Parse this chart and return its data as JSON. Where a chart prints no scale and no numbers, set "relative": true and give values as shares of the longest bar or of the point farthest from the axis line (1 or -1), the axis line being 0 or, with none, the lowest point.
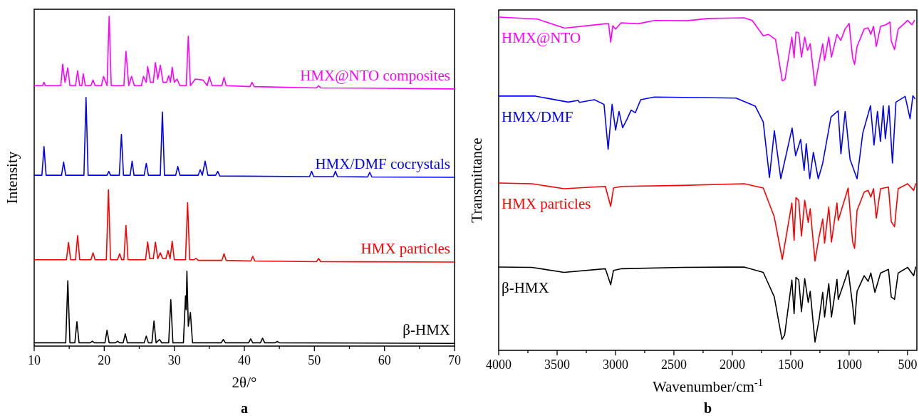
{
  "chart_data": [
    {
      "type": "line",
      "relative": true,
      "xlabel": "2θ/°",
      "ylabel": "Intensity",
      "annotations": [
        "a"
      ],
      "xlim": [
        10,
        70
      ],
      "xticks": [
        10,
        {
          "value": 15,
          "label": null
        },
        20,
        {
          "value": 25,
          "label": null
        },
        30,
        {
          "value": 35,
          "label": null
        },
        40,
        {
          "value": 45,
          "label": null
        },
        50,
        {
          "value": 55,
          "label": null
        },
        60,
        {
          "value": 65,
          "label": null
        },
        70
      ],
      "series": [
        {
          "name": "HMX@NTO composites",
          "color": "#ff00ff",
          "x": [
            10,
            11.2,
            11.4,
            11.6,
            13.8,
            14.07,
            14.4,
            14.8,
            15.1,
            15.9,
            16.2,
            16.5,
            16.8,
            17.0,
            17.3,
            18.1,
            18.4,
            18.7,
            19.6,
            19.9,
            20.4,
            20.7,
            21.0,
            22.8,
            23.1,
            23.5,
            23.9,
            24.3,
            25.3,
            25.6,
            26.0,
            26.2,
            26.6,
            27.0,
            27.3,
            27.65,
            28.0,
            28.4,
            28.9,
            29.2,
            29.45,
            29.7,
            30.0,
            30.4,
            30.8,
            31.7,
            32.0,
            32.3,
            33.0,
            34.1,
            34.7,
            35.0,
            35.4,
            36.8,
            37.1,
            37.4,
            40.8,
            41.1,
            41.4,
            50.3,
            50.6,
            50.9,
            60,
            70
          ],
          "values": [
            0.79,
            0.79,
            0.8,
            0.79,
            0.79,
            0.855,
            0.8,
            0.844,
            0.79,
            0.79,
            0.835,
            0.79,
            0.79,
            0.826,
            0.79,
            0.79,
            0.807,
            0.79,
            0.79,
            0.818,
            0.79,
            1.0,
            0.79,
            0.79,
            0.894,
            0.79,
            0.818,
            0.79,
            0.79,
            0.818,
            0.8,
            0.848,
            0.8,
            0.8,
            0.86,
            0.81,
            0.852,
            0.8,
            0.8,
            0.82,
            0.8,
            0.846,
            0.8,
            0.81,
            0.79,
            0.79,
            0.94,
            0.79,
            0.81,
            0.807,
            0.79,
            0.817,
            0.79,
            0.79,
            0.815,
            0.79,
            0.787,
            0.8,
            0.787,
            0.783,
            0.79,
            0.783,
            0.782,
            0.78
          ]
        },
        {
          "name": "HMX/DMF cocrystals",
          "color": "#0000ff",
          "x": [
            10,
            11.1,
            11.4,
            11.7,
            13.9,
            14.2,
            14.5,
            17.1,
            17.4,
            17.7,
            20.4,
            20.65,
            20.9,
            22.15,
            22.45,
            22.75,
            23.7,
            23.98,
            24.25,
            25.7,
            26.0,
            26.3,
            28.0,
            28.3,
            28.6,
            30.2,
            30.5,
            30.8,
            33.4,
            33.7,
            34.0,
            34.4,
            34.8,
            35.9,
            36.2,
            36.5,
            49.3,
            49.6,
            49.9,
            52.7,
            53.0,
            53.3,
            57.6,
            57.9,
            58.2,
            70
          ],
          "values": [
            0.518,
            0.518,
            0.605,
            0.518,
            0.518,
            0.558,
            0.518,
            0.518,
            0.754,
            0.518,
            0.518,
            0.53,
            0.518,
            0.518,
            0.642,
            0.518,
            0.518,
            0.561,
            0.518,
            0.518,
            0.554,
            0.518,
            0.518,
            0.71,
            0.518,
            0.518,
            0.545,
            0.518,
            0.518,
            0.535,
            0.518,
            0.561,
            0.518,
            0.518,
            0.53,
            0.516,
            0.514,
            0.53,
            0.514,
            0.514,
            0.53,
            0.514,
            0.513,
            0.527,
            0.513,
            0.512
          ]
        },
        {
          "name": "HMX particles",
          "color": "#ff0000",
          "x": [
            10,
            14.6,
            14.9,
            15.2,
            15.9,
            16.2,
            16.5,
            18.1,
            18.4,
            18.7,
            20.3,
            20.6,
            20.9,
            21.9,
            22.2,
            22.5,
            22.8,
            23.1,
            23.4,
            25.9,
            26.2,
            26.5,
            27.0,
            27.3,
            27.65,
            28.0,
            28.35,
            28.8,
            29.1,
            29.4,
            29.7,
            30.0,
            31.6,
            31.9,
            32.2,
            32.8,
            33.1,
            33.4,
            36.8,
            37.1,
            37.4,
            40.9,
            41.2,
            41.5,
            50.3,
            50.6,
            50.9,
            70
          ],
          "values": [
            0.262,
            0.262,
            0.314,
            0.262,
            0.262,
            0.335,
            0.262,
            0.262,
            0.283,
            0.262,
            0.262,
            0.474,
            0.262,
            0.262,
            0.28,
            0.262,
            0.262,
            0.366,
            0.262,
            0.262,
            0.316,
            0.265,
            0.265,
            0.315,
            0.265,
            0.283,
            0.265,
            0.265,
            0.29,
            0.265,
            0.318,
            0.262,
            0.262,
            0.435,
            0.262,
            0.262,
            0.266,
            0.26,
            0.26,
            0.28,
            0.26,
            0.258,
            0.272,
            0.258,
            0.256,
            0.266,
            0.256,
            0.255
          ]
        },
        {
          "name": "β-HMX",
          "color": "#000000",
          "x": [
            10,
            14.5,
            14.8,
            15.1,
            15.8,
            16.1,
            16.4,
            18.0,
            18.3,
            18.6,
            20.1,
            20.4,
            20.7,
            21.6,
            21.9,
            22.2,
            22.7,
            23.0,
            23.3,
            25.7,
            26.0,
            26.3,
            26.8,
            27.1,
            27.4,
            27.9,
            28.2,
            29.2,
            29.5,
            29.8,
            31.3,
            31.6,
            31.7,
            31.8,
            32.0,
            32.3,
            32.6,
            36.7,
            37.0,
            37.3,
            40.6,
            40.9,
            41.2,
            42.3,
            42.6,
            42.9,
            44.4,
            44.7,
            45.0,
            70
          ],
          "values": [
            0.01,
            0.01,
            0.198,
            0.01,
            0.01,
            0.074,
            0.01,
            0.01,
            0.015,
            0.01,
            0.01,
            0.048,
            0.01,
            0.01,
            0.015,
            0.01,
            0.01,
            0.037,
            0.01,
            0.01,
            0.03,
            0.01,
            0.01,
            0.076,
            0.01,
            0.02,
            0.01,
            0.01,
            0.141,
            0.01,
            0.01,
            0.152,
            0.11,
            0.227,
            0.06,
            0.102,
            0.01,
            0.01,
            0.02,
            0.01,
            0.01,
            0.022,
            0.01,
            0.01,
            0.024,
            0.01,
            0.01,
            0.014,
            0.01,
            0.008
          ]
        }
      ]
    },
    {
      "type": "line",
      "relative": true,
      "xlabel": "Wavenumber/cm$^{-1}$",
      "ylabel": "Transmittance",
      "annotations": [
        "b"
      ],
      "xlim": [
        4000,
        420
      ],
      "xticks": [
        4000,
        {
          "value": 3750,
          "label": null
        },
        3500,
        {
          "value": 3250,
          "label": null
        },
        3000,
        {
          "value": 2750,
          "label": null
        },
        2500,
        {
          "value": 2250,
          "label": null
        },
        2000,
        {
          "value": 1750,
          "label": null
        },
        1500,
        {
          "value": 1250,
          "label": null
        },
        1000,
        {
          "value": 750,
          "label": null
        },
        500
      ],
      "series": [
        {
          "name": "HMX@NTO",
          "color": "#ff00ff",
          "x": [
            4000,
            3669,
            3436,
            3087,
            3059,
            3041,
            3023,
            2999,
            2952,
            2807,
            2667,
            2387,
            2201,
            1898,
            1829,
            1735,
            1690,
            1630,
            1572,
            1549,
            1490,
            1471,
            1455,
            1431,
            1408,
            1380,
            1356,
            1333,
            1292,
            1256,
            1226,
            1210,
            1174,
            1151,
            1104,
            1071,
            1035,
            1000,
            970,
            953,
            932,
            871,
            837,
            814,
            791,
            767,
            731,
            685,
            650,
            639,
            611,
            580,
            499,
            463,
            440
          ],
          "values": [
            1,
            0.994,
            0.967,
            0.98,
            0.98,
            0.925,
            0.974,
            0.964,
            0.983,
            0.98,
            0.99,
            0.989,
            0.996,
            0.998,
            0.99,
            0.944,
            0.948,
            0.933,
            0.809,
            0.813,
            0.94,
            0.878,
            0.955,
            0.953,
            0.88,
            0.94,
            0.9,
            0.92,
            0.794,
            0.866,
            0.92,
            0.87,
            0.94,
            0.88,
            0.948,
            0.93,
            0.964,
            0.981,
            0.878,
            0.858,
            0.912,
            0.964,
            0.968,
            0.948,
            0.972,
            0.912,
            0.972,
            0.977,
            0.985,
            0.928,
            0.903,
            0.964,
            0.99,
            0.977,
            0.99
          ]
        },
        {
          "name": "HMX/DMF",
          "color": "#0000ff",
          "x": [
            4000,
            3687,
            3405,
            3320,
            3308,
            3181,
            3098,
            3063,
            3029,
            2999,
            2970,
            2939,
            2902,
            2866,
            2830,
            2784,
            2667,
            1968,
            1804,
            1735,
            1682,
            1640,
            1585,
            1488,
            1458,
            1415,
            1385,
            1367,
            1337,
            1306,
            1264,
            1227,
            1155,
            1094,
            1070,
            1034,
            992,
            932,
            883,
            817,
            787,
            757,
            732,
            708,
            690,
            659,
            629,
            599,
            520,
            478,
            454,
            436
          ],
          "values": [
            0.763,
            0.763,
            0.745,
            0.75,
            0.744,
            0.752,
            0.738,
            0.603,
            0.738,
            0.661,
            0.717,
            0.668,
            0.693,
            0.721,
            0.713,
            0.752,
            0.76,
            0.757,
            0.733,
            0.685,
            0.519,
            0.659,
            0.515,
            0.667,
            0.584,
            0.633,
            0.54,
            0.62,
            0.515,
            0.594,
            0.515,
            0.56,
            0.7,
            0.719,
            0.59,
            0.717,
            0.573,
            0.515,
            0.652,
            0.734,
            0.616,
            0.717,
            0.627,
            0.734,
            0.635,
            0.734,
            0.562,
            0.745,
            0.762,
            0.695,
            0.764,
            0.755
          ]
        },
        {
          "name": "HMX particles",
          "color": "#ff0000",
          "x": [
            4000,
            3716,
            3441,
            3087,
            3041,
            3017,
            2947,
            2435,
            1898,
            1735,
            1641,
            1572,
            1490,
            1471,
            1455,
            1431,
            1408,
            1380,
            1350,
            1333,
            1292,
            1256,
            1226,
            1210,
            1174,
            1151,
            1104,
            1093,
            1008,
            970,
            953,
            932,
            871,
            837,
            814,
            791,
            767,
            731,
            663,
            639,
            611,
            580,
            499,
            447,
            430
          ],
          "values": [
            0.502,
            0.5,
            0.485,
            0.492,
            0.432,
            0.487,
            0.492,
            0.495,
            0.5,
            0.487,
            0.401,
            0.273,
            0.442,
            0.33,
            0.458,
            0.45,
            0.343,
            0.45,
            0.384,
            0.425,
            0.268,
            0.343,
            0.394,
            0.322,
            0.43,
            0.325,
            0.442,
            0.39,
            0.487,
            0.326,
            0.306,
            0.42,
            0.475,
            0.48,
            0.46,
            0.485,
            0.397,
            0.485,
            0.49,
            0.386,
            0.371,
            0.485,
            0.5,
            0.48,
            0.5
          ]
        },
        {
          "name": "β-HMX",
          "color": "#000000",
          "x": [
            4000,
            3716,
            3441,
            3087,
            3041,
            3017,
            2947,
            2435,
            1898,
            1735,
            1641,
            1575,
            1552,
            1490,
            1471,
            1455,
            1431,
            1408,
            1380,
            1350,
            1333,
            1292,
            1256,
            1226,
            1210,
            1174,
            1151,
            1104,
            1093,
            1008,
            970,
            953,
            932,
            871,
            837,
            814,
            779,
            731,
            663,
            639,
            611,
            580,
            499,
            447,
            430
          ],
          "values": [
            0.25,
            0.249,
            0.234,
            0.245,
            0.197,
            0.24,
            0.245,
            0.249,
            0.25,
            0.234,
            0.161,
            0.033,
            0.046,
            0.211,
            0.11,
            0.219,
            0.211,
            0.116,
            0.215,
            0.144,
            0.177,
            0.025,
            0.095,
            0.174,
            0.1,
            0.2,
            0.1,
            0.213,
            0.153,
            0.24,
            0.136,
            0.079,
            0.177,
            0.224,
            0.207,
            0.232,
            0.174,
            0.232,
            0.243,
            0.16,
            0.153,
            0.232,
            0.249,
            0.224,
            0.25
          ]
        }
      ]
    }
  ]
}
